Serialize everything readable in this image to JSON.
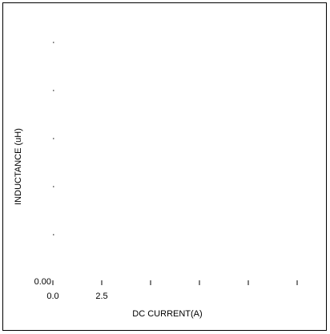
{
  "chart_data": {
    "type": "line",
    "title": "",
    "xlabel": "DC CURRENT(A)",
    "ylabel": "INDUCTANCE (uH)",
    "x_tick_labels": [
      "0.0",
      "2.5"
    ],
    "y_tick_labels": [
      "0.00"
    ],
    "x_tick_count": 6,
    "y_tick_count": 6,
    "series": [],
    "grid": false
  }
}
